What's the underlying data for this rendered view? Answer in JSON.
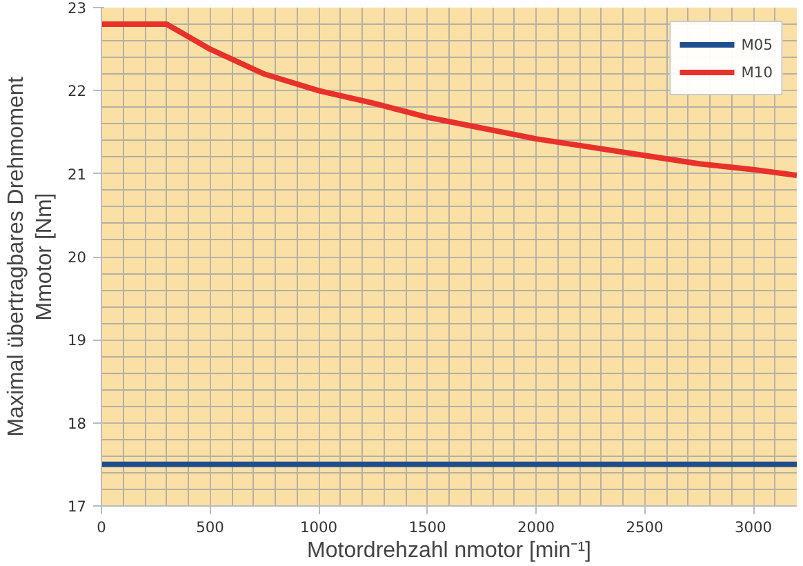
{
  "chart_data": {
    "type": "line",
    "xlabel": "Motordrehzahl nmotor [min⁻¹]",
    "ylabel": "Maximal übertragbares Drehmoment\nMmotor [Nm]",
    "xlim": [
      0,
      3200
    ],
    "xticks": [
      0,
      500,
      1000,
      1500,
      2000,
      2500,
      3000
    ],
    "ylim": [
      17,
      23
    ],
    "yticks": [
      17,
      18,
      19,
      20,
      21,
      22,
      23
    ],
    "grid": true,
    "legend": "top right",
    "series": [
      {
        "name": "M05",
        "color": "#1f4e8c",
        "x": [
          0,
          3200
        ],
        "values": [
          17.5,
          17.5
        ]
      },
      {
        "name": "M10",
        "color": "#e8312a",
        "x": [
          0,
          300,
          500,
          750,
          1000,
          1250,
          1500,
          1750,
          2000,
          2250,
          2500,
          2750,
          3000,
          3200
        ],
        "values": [
          22.8,
          22.8,
          22.5,
          22.2,
          22.0,
          21.85,
          21.68,
          21.55,
          21.42,
          21.32,
          21.22,
          21.12,
          21.05,
          20.98
        ]
      }
    ]
  }
}
